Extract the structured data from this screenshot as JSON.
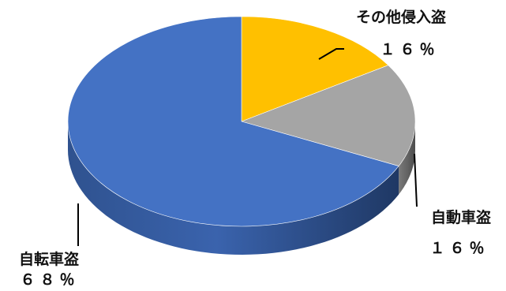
{
  "chart_data": {
    "type": "pie",
    "title": "",
    "categories": [
      "その他侵入盗",
      "自動車盗",
      "自転車盗"
    ],
    "values": [
      16,
      16,
      68
    ],
    "value_labels": [
      "１６％",
      "１６％",
      "６８％"
    ],
    "colors": [
      "#FFC000",
      "#A5A5A5",
      "#4472C4"
    ],
    "style": "3d",
    "legend": "none",
    "start_angle": "top, clockwise"
  }
}
